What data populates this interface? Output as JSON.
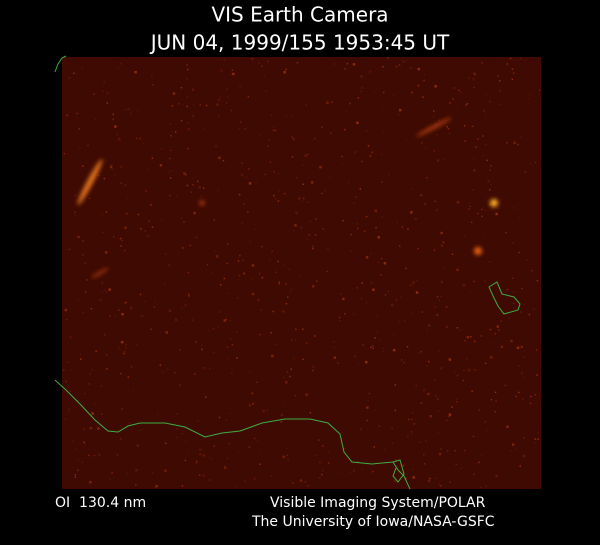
{
  "header": {
    "title": "VIS Earth Camera",
    "timestamp": "JUN 04, 1999/155 1953:45 UT"
  },
  "footer": {
    "filter": "OI  130.4 nm",
    "instrument": "Visible Imaging System/POLAR",
    "institution": "The University of Iowa/NASA-GSFC"
  }
}
